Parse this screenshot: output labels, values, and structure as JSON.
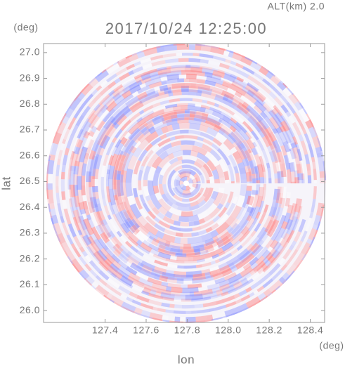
{
  "chart_data": {
    "type": "radar-ppi",
    "title": "2017/10/24 12:25:00",
    "subtitle": "ALT(km) 2.0",
    "x_label": "lon",
    "y_label": "lat",
    "x_unit": "(deg)",
    "y_unit": "(deg)",
    "xlim": [
      127.1,
      128.47
    ],
    "ylim": [
      25.954,
      27.035
    ],
    "xticks": [
      127.4,
      127.6,
      127.8,
      {
        "value": 128,
        "label": "128.0"
      },
      128.2,
      128.4
    ],
    "yticks": [
      {
        "value": 26,
        "label": "26.0"
      },
      26.1,
      26.2,
      26.3,
      26.4,
      26.5,
      26.6,
      26.7,
      26.8,
      26.9,
      {
        "value": 27,
        "label": "27.0"
      }
    ]
  }
}
